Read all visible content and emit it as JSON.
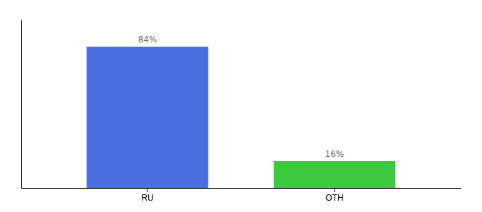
{
  "chart_data": {
    "type": "bar",
    "categories": [
      "RU",
      "OTH"
    ],
    "values": [
      84,
      16
    ],
    "value_labels": [
      "84%",
      "16%"
    ],
    "colors": [
      "#4a6ee0",
      "#3dc93d"
    ],
    "ylim": [
      0,
      100
    ],
    "data_labels": true,
    "tick_labels": "x"
  }
}
